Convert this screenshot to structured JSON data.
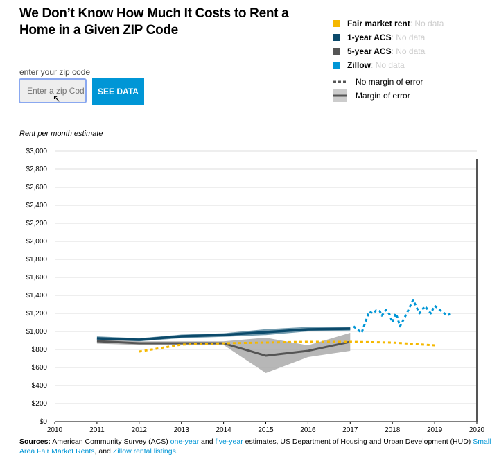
{
  "header": {
    "title": "We Don’t Know How Much It Costs to Rent a Home in a Given ZIP Code"
  },
  "zip": {
    "label": "enter your zip code",
    "placeholder": "Enter a zip Cod",
    "button": "SEE DATA"
  },
  "legend": {
    "items": [
      {
        "name": "Fair market rent",
        "status": ": No data",
        "color": "#f5b800"
      },
      {
        "name": "1-year ACS",
        "status": ": No data",
        "color": "#0b4a6b"
      },
      {
        "name": "5-year ACS",
        "status": ": No data",
        "color": "#555555"
      },
      {
        "name": "Zillow",
        "status": ": No data",
        "color": "#0096d6"
      }
    ],
    "no_margin": "No margin of error",
    "margin": "Margin of error"
  },
  "chart_data": {
    "type": "line",
    "ylabel": "Rent per month estimate",
    "xlim": [
      2010,
      2020
    ],
    "ylim": [
      0,
      3000
    ],
    "x_ticks": [
      "2010",
      "2011",
      "2012",
      "2013",
      "2014",
      "2015",
      "2016",
      "2017",
      "2018",
      "2019",
      "2020"
    ],
    "y_ticks": [
      "$0",
      "$200",
      "$400",
      "$600",
      "$800",
      "$1,000",
      "$1,200",
      "$1,400",
      "$1,600",
      "$1,800",
      "$2,000",
      "$2,200",
      "$2,400",
      "$2,600",
      "$2,800",
      "$3,000"
    ],
    "grid": true,
    "series": [
      {
        "name": "1-year ACS",
        "style": "solid-band",
        "x": [
          2011,
          2012,
          2013,
          2014,
          2015,
          2016,
          2017
        ],
        "y": [
          923,
          908,
          946,
          962,
          992,
          1023,
          1031
        ],
        "low": [
          900,
          890,
          925,
          940,
          960,
          1000,
          1010
        ],
        "high": [
          945,
          925,
          965,
          980,
          1025,
          1050,
          1050
        ]
      },
      {
        "name": "5-year ACS",
        "style": "solid-band",
        "x": [
          2011,
          2012,
          2013,
          2014,
          2015,
          2016,
          2017
        ],
        "y": [
          892,
          869,
          869,
          869,
          731,
          785,
          885
        ],
        "low": [
          865,
          850,
          850,
          850,
          538,
          715,
          785
        ],
        "high": [
          915,
          890,
          890,
          890,
          931,
          846,
          985
        ]
      },
      {
        "name": "Fair market rent",
        "style": "dotted",
        "x": [
          2012,
          2013,
          2014,
          2015,
          2016,
          2017,
          2018,
          2019
        ],
        "y": [
          777,
          854,
          869,
          877,
          885,
          885,
          877,
          846
        ]
      },
      {
        "name": "Zillow",
        "style": "dotted",
        "x": [
          2017.08,
          2017.27,
          2017.45,
          2017.54,
          2017.62,
          2017.7,
          2017.75,
          2017.85,
          2017.93,
          2018.0,
          2018.08,
          2018.11,
          2018.18,
          2018.34,
          2018.49,
          2018.64,
          2018.77,
          2018.91,
          2019.0,
          2019.16,
          2019.29,
          2019.4
        ],
        "y": [
          1056,
          985,
          1220,
          1200,
          1235,
          1225,
          1175,
          1240,
          1190,
          1100,
          1200,
          1165,
          1056,
          1200,
          1350,
          1200,
          1280,
          1200,
          1285,
          1225,
          1180,
          1195
        ]
      }
    ]
  },
  "sources": {
    "label": "Sources:",
    "t1": " American Community Survey (ACS) ",
    "l1": "one-year",
    "t2": " and ",
    "l2": "five-year",
    "t3": " estimates, US Department of Housing and Urban Development (HUD) ",
    "l3": "Small Area Fair Market Rents",
    "t4": ", and ",
    "l4": "Zillow rental listings",
    "t5": "."
  }
}
